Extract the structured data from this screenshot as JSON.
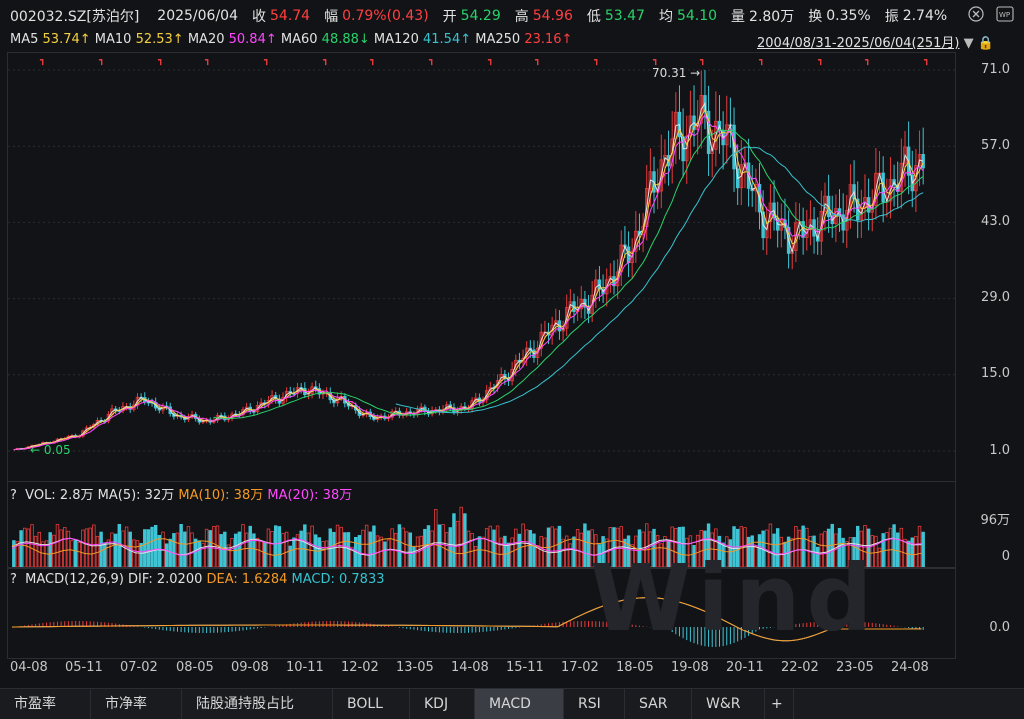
{
  "header": {
    "code_name": "002032.SZ[苏泊尔]",
    "date": "2025/06/04",
    "close_label": "收",
    "close_value": "54.74",
    "change_label": "幅",
    "change_value": "0.79%(0.43)",
    "open_label": "开",
    "open_value": "54.29",
    "high_label": "高",
    "high_value": "54.96",
    "low_label": "低",
    "low_value": "53.47",
    "avg_label": "均",
    "avg_value": "54.10",
    "vol_label": "量",
    "vol_value": "2.80万",
    "turnover_label": "换",
    "turnover_value": "0.35%",
    "amplitude_label": "振",
    "amplitude_value": "2.74%"
  },
  "ma_line": {
    "ma5": "MA5",
    "ma5_val": "53.74↑",
    "ma10": "MA10",
    "ma10_val": "52.53↑",
    "ma20": "MA20",
    "ma20_val": "50.84↑",
    "ma60": "MA60",
    "ma60_val": "48.88↓",
    "ma120": "MA120",
    "ma120_val": "41.54↑",
    "ma250": "MA250",
    "ma250_val": "23.16↑",
    "range": "2004/08/31-2025/06/04(251月)"
  },
  "price_axis": [
    "71.0",
    "57.0",
    "43.0",
    "29.0",
    "15.0",
    "1.0"
  ],
  "annotations": {
    "high_mark": "70.31",
    "low_mark": "0.05"
  },
  "vol_panel": {
    "help": "?",
    "title": "VOL: 2.8万",
    "ma5": "MA(5): 32万",
    "ma10": "MA(10): 38万",
    "ma20": "MA(20): 38万",
    "axis_top": "96万",
    "axis_zero": "0"
  },
  "macd_panel": {
    "help": "?",
    "title": "MACD(12,26,9)",
    "dif": "DIF: 2.0200",
    "dea": "DEA: 1.6284",
    "macd": "MACD: 0.7833",
    "axis_zero": "0.0"
  },
  "x_axis": [
    "04-08",
    "05-11",
    "07-02",
    "08-05",
    "09-08",
    "10-11",
    "12-02",
    "13-05",
    "14-08",
    "15-11",
    "17-02",
    "18-05",
    "19-08",
    "20-11",
    "22-02",
    "23-05",
    "24-08"
  ],
  "tabs": [
    "市盈率",
    "市净率",
    "陆股通持股占比",
    "BOLL",
    "KDJ",
    "MACD",
    "RSI",
    "SAR",
    "W&R",
    "+"
  ],
  "watermark": "Wind",
  "colors": {
    "up": "#e83b3b",
    "down": "#3fc4d4",
    "ma5": "#e2e2e2",
    "ma10": "#f4d03f",
    "ma20": "#ff48ff",
    "ma60": "#29d26b",
    "ma120": "#36c3d0"
  },
  "chart_data": {
    "type": "candlestick",
    "x_label_ticks": [
      "04-08",
      "05-11",
      "07-02",
      "08-05",
      "09-08",
      "10-11",
      "12-02",
      "13-05",
      "14-08",
      "15-11",
      "17-02",
      "18-05",
      "19-08",
      "20-11",
      "22-02",
      "23-05",
      "24-08"
    ],
    "ylim": [
      1.0,
      71.0
    ],
    "close_series_approx": [
      1.2,
      2.5,
      4.0,
      8.0,
      10.5,
      7.5,
      6.5,
      8.0,
      10.5,
      12.5,
      10.5,
      7.0,
      8.0,
      8.5,
      9.0,
      14.0,
      20.0,
      26.0,
      30.0,
      38.0,
      55.0,
      62.0,
      58.0,
      45.0,
      40.0,
      44.0,
      46.0,
      50.0,
      54.74
    ],
    "last_close": 54.74,
    "high_point": 70.31,
    "low_point": 0.05
  }
}
